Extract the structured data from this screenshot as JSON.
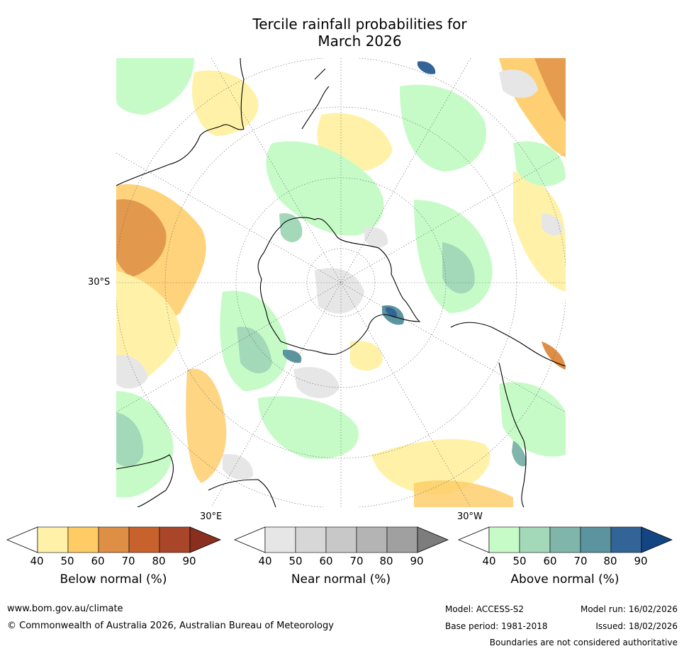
{
  "title_line1": "Tercile rainfall probabilities for",
  "title_line2": "March 2026",
  "map": {
    "projection": "south-polar-stereographic",
    "labels": {
      "lat": "30°S",
      "lon_east": "30°E",
      "lon_west": "30°W"
    },
    "colors": {
      "land_outline": "#000000",
      "boundaries": "#888888",
      "graticule": "#666666"
    }
  },
  "legends": [
    {
      "id": "below",
      "title": "Below normal (%)",
      "ticks": [
        "40",
        "50",
        "60",
        "70",
        "80",
        "90"
      ],
      "colors": [
        "#fff2a8",
        "#fecb64",
        "#de8e45",
        "#c7622d",
        "#a9462a",
        "#8a2f1f"
      ]
    },
    {
      "id": "near",
      "title": "Near normal (%)",
      "ticks": [
        "40",
        "50",
        "60",
        "70",
        "80",
        "90"
      ],
      "colors": [
        "#e6e6e6",
        "#d7d7d7",
        "#c8c8c8",
        "#b4b4b4",
        "#a0a0a0",
        "#7d7d7d"
      ]
    },
    {
      "id": "above",
      "title": "Above normal (%)",
      "ticks": [
        "40",
        "50",
        "60",
        "70",
        "80",
        "90"
      ],
      "colors": [
        "#c6fbc8",
        "#a3d8b8",
        "#7fb5ab",
        "#5b949f",
        "#336497",
        "#144583"
      ]
    }
  ],
  "footer": {
    "website": "www.bom.gov.au/climate",
    "copyright": "© Commonwealth of Australia 2026, Australian Bureau of Meteorology",
    "model": "Model: ACCESS-S2",
    "model_run": "Model run: 16/02/2026",
    "base_period": "Base period: 1981-2018",
    "issued": "Issued: 18/02/2026",
    "disclaimer": "Boundaries are not considered authoritative"
  }
}
